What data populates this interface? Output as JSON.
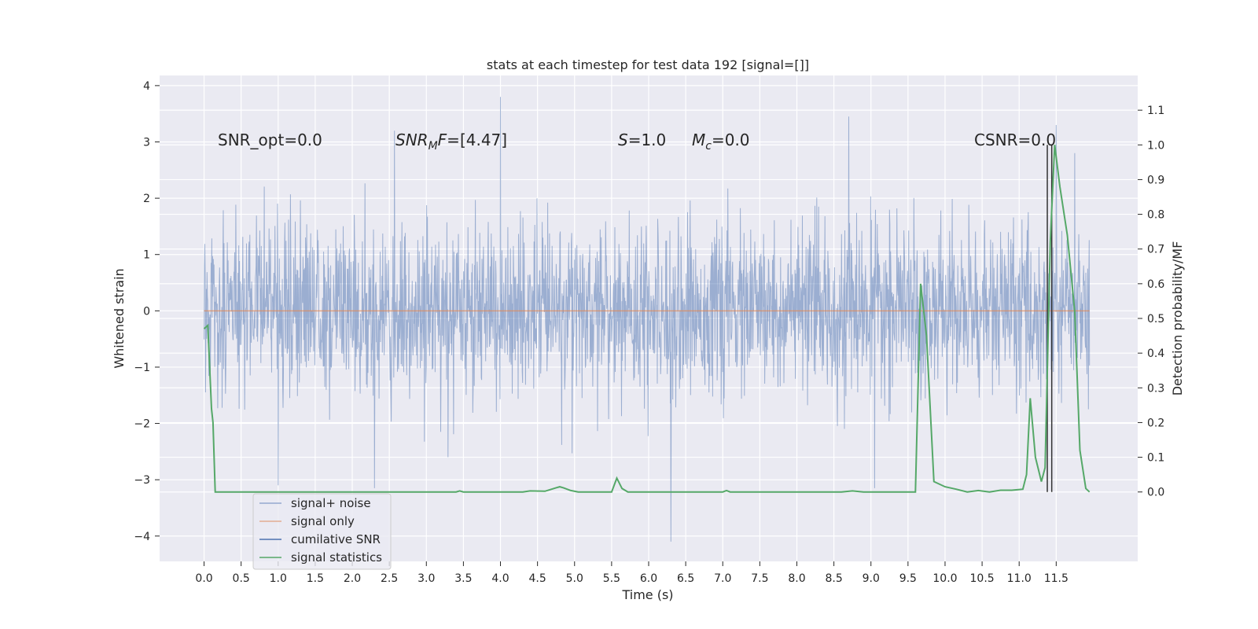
{
  "chart_data": {
    "type": "line",
    "title": "stats at each timestep for test data 192 [signal=[]]",
    "xlabel": "Time (s)",
    "ylabel": "Whitened strain",
    "ylabel_right": "Detection probability/MF",
    "xlim": [
      -0.6,
      12.6
    ],
    "ylim": [
      -4.45,
      4.18
    ],
    "ylim_right": [
      -0.2,
      1.2
    ],
    "x_ticks": [
      "0.0",
      "0.5",
      "1.0",
      "1.5",
      "2.0",
      "2.5",
      "3.0",
      "3.5",
      "4.0",
      "4.5",
      "5.0",
      "5.5",
      "6.0",
      "6.5",
      "7.0",
      "7.5",
      "8.0",
      "8.5",
      "9.0",
      "9.5",
      "10.0",
      "10.5",
      "11.0",
      "11.5"
    ],
    "y_ticks": [
      "4",
      "3",
      "2",
      "1",
      "0",
      "−1",
      "−2",
      "−3",
      "−4"
    ],
    "y_ticks_right": [
      "1.1",
      "1.0",
      "0.9",
      "0.8",
      "0.7",
      "0.6",
      "0.5",
      "0.4",
      "0.3",
      "0.2",
      "0.1",
      "0.0"
    ],
    "grid": true,
    "legend_position": "lower-left",
    "annotations": {
      "snr_opt": "SNR_opt=0.0",
      "snr_mf": "[4.47]",
      "s_val": "=1.0",
      "mc_val": "=0.0",
      "csnr": "CSNR=0.0"
    },
    "series": [
      {
        "name": "signal+ noise",
        "color": "#4c72b0",
        "description": "whitened noise, roughly Gaussian, 0.0 to 11.95 s",
        "x_range": [
          0.0,
          11.95
        ],
        "notable_peaks": [
          [
            4.0,
            3.8
          ],
          [
            8.7,
            3.45
          ],
          [
            11.5,
            3.3
          ],
          [
            2.57,
            3.2
          ],
          [
            6.3,
            -4.1
          ],
          [
            9.05,
            -3.15
          ],
          [
            2.3,
            -3.15
          ],
          [
            1.0,
            -3.1
          ],
          [
            11.75,
            2.8
          ]
        ]
      },
      {
        "name": "signal only",
        "color": "#dd8452",
        "x": [
          0.0,
          11.95
        ],
        "y": [
          0.0,
          0.0
        ]
      },
      {
        "name": "cumilative SNR",
        "color": "#4c72b0",
        "x": [
          11.38,
          11.38,
          11.44,
          11.44
        ],
        "y": [
          0.0,
          1.0,
          0.0,
          1.0
        ]
      },
      {
        "name": "signal statistics",
        "color": "#55a868",
        "x": [
          0.0,
          0.05,
          0.1,
          0.12,
          0.15,
          3.4,
          3.45,
          3.5,
          4.3,
          4.4,
          4.6,
          4.75,
          4.8,
          4.85,
          4.95,
          5.05,
          5.5,
          5.57,
          5.64,
          5.72,
          5.8,
          7.0,
          7.05,
          7.1,
          8.0,
          8.6,
          8.75,
          8.9,
          9.6,
          9.67,
          9.75,
          9.85,
          10.0,
          10.15,
          10.3,
          10.45,
          10.6,
          10.75,
          10.9,
          11.05,
          11.1,
          11.15,
          11.22,
          11.3,
          11.35,
          11.42,
          11.48,
          11.55,
          11.65,
          11.75,
          11.82,
          11.9,
          11.95
        ],
        "y": [
          0.47,
          0.48,
          0.24,
          0.2,
          0.0,
          0.0,
          0.003,
          0.0,
          0.0,
          0.003,
          0.002,
          0.012,
          0.015,
          0.012,
          0.004,
          0.0,
          0.0,
          0.04,
          0.01,
          0.0,
          0.0,
          0.0,
          0.004,
          0.0,
          0.0,
          0.0,
          0.003,
          0.0,
          0.0,
          0.6,
          0.45,
          0.03,
          0.015,
          0.008,
          0.0,
          0.004,
          0.0,
          0.005,
          0.005,
          0.008,
          0.05,
          0.27,
          0.1,
          0.03,
          0.07,
          0.72,
          1.0,
          0.88,
          0.74,
          0.52,
          0.12,
          0.01,
          0.0
        ]
      }
    ]
  }
}
